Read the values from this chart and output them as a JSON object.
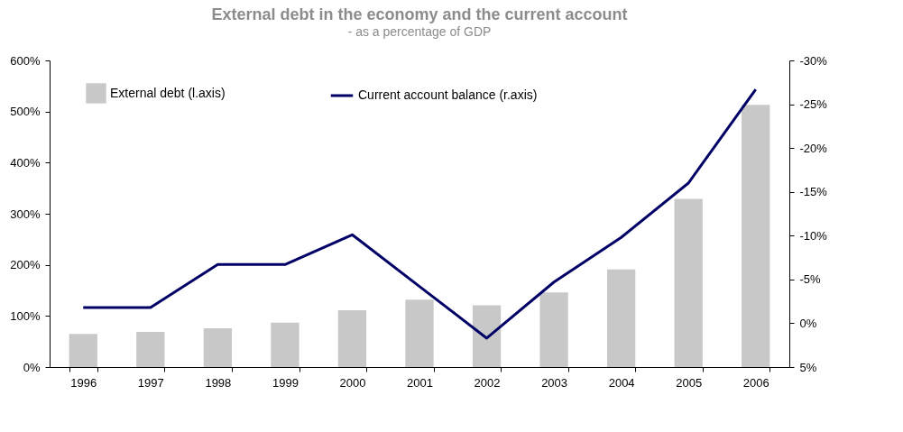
{
  "chart_data": {
    "type": "bar",
    "title": "External debt in the economy and the current account",
    "subtitle": "- as a percentage of GDP",
    "categories": [
      "1996",
      "1997",
      "1998",
      "1999",
      "2000",
      "2001",
      "2002",
      "2003",
      "2004",
      "2005",
      "2006"
    ],
    "series": [
      {
        "name": "External debt (l.axis)",
        "color": "#c8c8c8",
        "values": [
          65,
          69,
          76,
          87,
          111,
          132,
          121,
          146,
          191,
          329,
          513
        ]
      },
      {
        "name": "Current account balance (r.axis)",
        "type": "line",
        "axis": "y2",
        "color": "#000066",
        "values": [
          -1.8,
          -1.8,
          -6.7,
          -6.7,
          -10.1,
          -4.2,
          1.7,
          -4.7,
          -9.8,
          -16,
          -26.7
        ]
      }
    ],
    "ylim": [
      0,
      600
    ],
    "yticks": [
      {
        "value": 0,
        "label": "0%"
      },
      {
        "value": 100,
        "label": "100%"
      },
      {
        "value": 200,
        "label": "200%"
      },
      {
        "value": 300,
        "label": "300%"
      },
      {
        "value": 400,
        "label": "400%"
      },
      {
        "value": 500,
        "label": "500%"
      },
      {
        "value": 600,
        "label": "600%"
      }
    ],
    "y2lim": [
      5,
      -30
    ],
    "y2ticks": [
      {
        "value": 5,
        "label": "5%"
      },
      {
        "value": 0,
        "label": "0%"
      },
      {
        "value": -5,
        "label": "-5%"
      },
      {
        "value": -10,
        "label": "-10%"
      },
      {
        "value": -15,
        "label": "-15%"
      },
      {
        "value": -20,
        "label": "-20%"
      },
      {
        "value": -25,
        "label": "-25%"
      },
      {
        "value": -30,
        "label": "-30%"
      }
    ],
    "grid": false,
    "legend": "top left",
    "line_style": "solid",
    "marker": "none"
  }
}
